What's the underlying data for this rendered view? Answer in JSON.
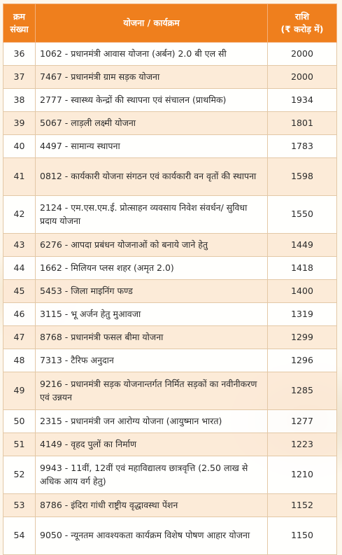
{
  "header": {
    "col_serial": [
      "क्रम",
      "संख्या"
    ],
    "col_scheme": "योजना / कार्यक्रम",
    "col_amount": [
      "राशि",
      "(₹ करोड़ में)"
    ]
  },
  "rows": [
    {
      "no": "36",
      "scheme": "1062 - प्रधानमंत्री आवास योजना (अर्बन) 2.0 बी एल सी",
      "amount": "2000"
    },
    {
      "no": "37",
      "scheme": "7467 - प्रधानमंत्री ग्राम सड़क योजना",
      "amount": "2000"
    },
    {
      "no": "38",
      "scheme": "2777 - स्वास्थ्य केन्द्रों की स्थापना एवं संचालन (प्राथमिक)",
      "amount": "1934"
    },
    {
      "no": "39",
      "scheme": "5067 - लाड़ली लक्ष्मी योजना",
      "amount": "1801"
    },
    {
      "no": "40",
      "scheme": "4497 - सामान्य स्थापना",
      "amount": "1783"
    },
    {
      "no": "41",
      "scheme": "0812 - कार्यकारी योजना संगठन एवं कार्यकारी वन वृतों की स्थापना",
      "amount": "1598"
    },
    {
      "no": "42",
      "scheme": "2124 - एम.एस.एम.ई. प्रोत्साहन व्यवसाय निवेश संवर्धन/ सुविधा प्रदाय योजना",
      "amount": "1550"
    },
    {
      "no": "43",
      "scheme": "6276 - आपदा प्रबंधन योजनाओं को बनाये जाने हेतु",
      "amount": "1449"
    },
    {
      "no": "44",
      "scheme": "1662 - मिलियन प्लस शहर (अमृत 2.0)",
      "amount": "1418"
    },
    {
      "no": "45",
      "scheme": "5453 - जिला माइनिंग फण्ड",
      "amount": "1400"
    },
    {
      "no": "46",
      "scheme": "3115 - भू अर्जन हेतु मुआवजा",
      "amount": "1319"
    },
    {
      "no": "47",
      "scheme": "8768 - प्रधानमंत्री फसल बीमा योजना",
      "amount": "1299"
    },
    {
      "no": "48",
      "scheme": "7313 - टैरिफ अनुदान",
      "amount": "1296"
    },
    {
      "no": "49",
      "scheme": "9216 - प्रधानमंत्री सड़क योजनान्तर्गत निर्मित सड़कों का नवीनीकरण एवं उन्नयन",
      "amount": "1285"
    },
    {
      "no": "50",
      "scheme": "2315 - प्रधानमंत्री जन आरोग्य योजना (आयुष्मान भारत)",
      "amount": "1277"
    },
    {
      "no": "51",
      "scheme": "4149 - वृहद पुलों का निर्माण",
      "amount": "1223"
    },
    {
      "no": "52",
      "scheme": "9943 - 11वीं, 12वीं एवं महाविद्यालय छात्रवृत्ति (2.50 लाख से अधिक आय वर्ग हेतु)",
      "amount": "1210"
    },
    {
      "no": "53",
      "scheme": "8786 - इंदिरा गांधी राष्ट्रीय वृद्धावस्था पेंशन",
      "amount": "1152"
    },
    {
      "no": "54",
      "scheme": "9050 - न्यूनतम आवश्यकता कार्यक्रम विशेष पोषण आहार योजना",
      "amount": "1150"
    }
  ]
}
